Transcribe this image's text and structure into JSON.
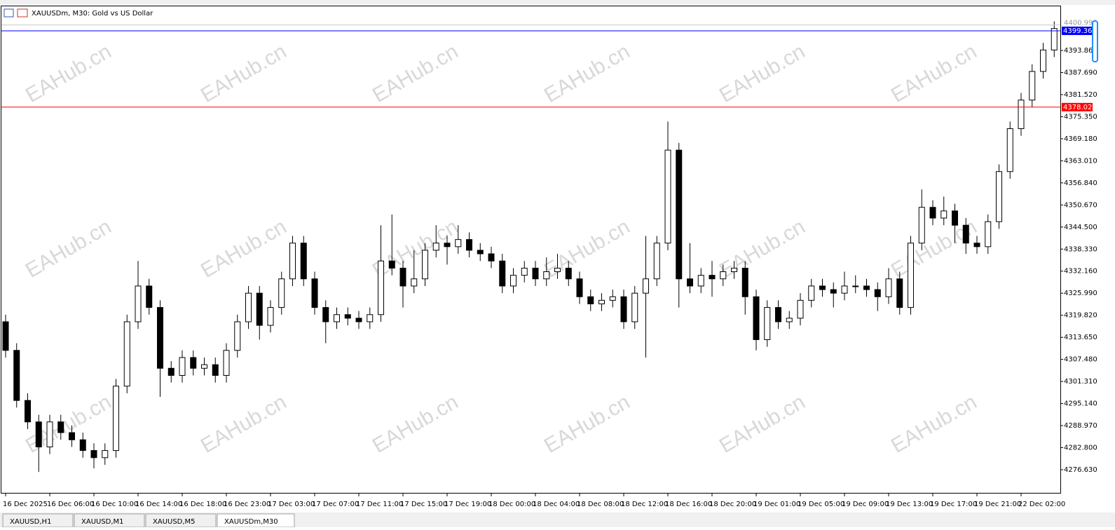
{
  "chart_data": {
    "type": "candlestick",
    "title": "XAUUSDm, M30:  Gold vs US Dollar",
    "watermark": "EAHub.cn",
    "tabs": [
      "XAUUSD,H1",
      "XAUUSD,M1",
      "XAUUSD,M5",
      "XAUUSDm,M30"
    ],
    "open": [
      4318,
      4310,
      4296,
      4290,
      4283,
      4290,
      4287,
      4285,
      4282,
      4280,
      4282,
      4300,
      4318,
      4328,
      4322,
      4305,
      4303,
      4308,
      4305,
      4306,
      4303,
      4310,
      4318,
      4326,
      4317,
      4322,
      4330,
      4340,
      4330,
      4322,
      4318,
      4320,
      4319,
      4318,
      4320,
      4335,
      4333,
      4328,
      4330,
      4338,
      4340,
      4339,
      4341,
      4338,
      4337,
      4335,
      4328,
      4331,
      4333,
      4330,
      4332,
      4333,
      4330,
      4325,
      4323,
      4324,
      4325,
      4318,
      4326,
      4330,
      4340,
      4366,
      4330,
      4328,
      4331,
      4330,
      4332,
      4333,
      4325,
      4313,
      4322,
      4318,
      4319,
      4324,
      4328,
      4327,
      4326,
      4328,
      4328,
      4327,
      4325,
      4330,
      4322,
      4340,
      4350,
      4347,
      4349,
      4345,
      4340,
      4339,
      4346,
      4360,
      4372,
      4380,
      4388,
      4394
    ],
    "high": [
      4320,
      4312,
      4298,
      4292,
      4292,
      4292,
      4289,
      4287,
      4284,
      4284,
      4302,
      4320,
      4335,
      4330,
      4324,
      4307,
      4310,
      4310,
      4308,
      4308,
      4312,
      4320,
      4328,
      4328,
      4324,
      4332,
      4342,
      4342,
      4332,
      4324,
      4322,
      4322,
      4321,
      4322,
      4345,
      4348,
      4335,
      4338,
      4340,
      4345,
      4342,
      4345,
      4343,
      4340,
      4339,
      4337,
      4333,
      4335,
      4335,
      4336,
      4337,
      4335,
      4332,
      4327,
      4326,
      4327,
      4327,
      4328,
      4342,
      4342,
      4374,
      4368,
      4340,
      4333,
      4335,
      4334,
      4335,
      4335,
      4327,
      4324,
      4324,
      4321,
      4326,
      4330,
      4330,
      4329,
      4332,
      4331,
      4330,
      4329,
      4333,
      4332,
      4342,
      4355,
      4352,
      4353,
      4351,
      4347,
      4342,
      4348,
      4362,
      4374,
      4382,
      4390,
      4396,
      4402
    ],
    "low": [
      4308,
      4294,
      4288,
      4276,
      4281,
      4285,
      4283,
      4280,
      4277,
      4278,
      4280,
      4298,
      4316,
      4320,
      4297,
      4301,
      4301,
      4303,
      4303,
      4301,
      4301,
      4308,
      4316,
      4313,
      4315,
      4320,
      4328,
      4328,
      4320,
      4312,
      4316,
      4317,
      4316,
      4316,
      4318,
      4331,
      4322,
      4326,
      4328,
      4336,
      4334,
      4337,
      4336,
      4335,
      4333,
      4326,
      4326,
      4329,
      4328,
      4328,
      4330,
      4328,
      4323,
      4321,
      4321,
      4322,
      4316,
      4316,
      4308,
      4328,
      4338,
      4322,
      4326,
      4326,
      4325,
      4328,
      4330,
      4320,
      4310,
      4311,
      4316,
      4316,
      4317,
      4322,
      4325,
      4322,
      4324,
      4326,
      4325,
      4321,
      4323,
      4320,
      4320,
      4338,
      4345,
      4345,
      4340,
      4337,
      4337,
      4337,
      4344,
      4358,
      4370,
      4378,
      4386,
      4392
    ],
    "close": [
      4310,
      4296,
      4290,
      4283,
      4290,
      4287,
      4285,
      4282,
      4280,
      4282,
      4300,
      4318,
      4328,
      4322,
      4305,
      4303,
      4308,
      4305,
      4306,
      4303,
      4310,
      4318,
      4326,
      4317,
      4322,
      4330,
      4340,
      4330,
      4322,
      4318,
      4320,
      4319,
      4318,
      4320,
      4335,
      4333,
      4328,
      4330,
      4338,
      4340,
      4339,
      4341,
      4338,
      4337,
      4335,
      4328,
      4331,
      4333,
      4330,
      4332,
      4333,
      4330,
      4325,
      4323,
      4324,
      4325,
      4318,
      4326,
      4330,
      4340,
      4366,
      4330,
      4328,
      4331,
      4330,
      4332,
      4333,
      4325,
      4313,
      4322,
      4318,
      4319,
      4324,
      4328,
      4327,
      4326,
      4328,
      4328,
      4327,
      4325,
      4330,
      4322,
      4340,
      4350,
      4347,
      4349,
      4345,
      4340,
      4339,
      4346,
      4360,
      4372,
      4380,
      4388,
      4394,
      4400
    ],
    "up_color": "#ffffff",
    "down_color": "#000000",
    "ylim": [
      4270.16,
      4406.41
    ],
    "yticks": [
      {
        "value": 4276.63,
        "label": "4276.630"
      },
      {
        "value": 4282.8,
        "label": "4282.800"
      },
      {
        "value": 4288.97,
        "label": "4288.970"
      },
      {
        "value": 4295.14,
        "label": "4295.140"
      },
      {
        "value": 4301.31,
        "label": "4301.310"
      },
      {
        "value": 4307.48,
        "label": "4307.480"
      },
      {
        "value": 4313.65,
        "label": "4313.650"
      },
      {
        "value": 4319.82,
        "label": "4319.820"
      },
      {
        "value": 4325.99,
        "label": "4325.990"
      },
      {
        "value": 4332.16,
        "label": "4332.160"
      },
      {
        "value": 4338.33,
        "label": "4338.330"
      },
      {
        "value": 4344.5,
        "label": "4344.500"
      },
      {
        "value": 4350.67,
        "label": "4350.670"
      },
      {
        "value": 4356.84,
        "label": "4356.840"
      },
      {
        "value": 4363.01,
        "label": "4363.010"
      },
      {
        "value": 4369.18,
        "label": "4369.180"
      },
      {
        "value": 4375.35,
        "label": "4375.350"
      },
      {
        "value": 4381.52,
        "label": "4381.520"
      },
      {
        "value": 4387.69,
        "label": "4387.690"
      },
      {
        "value": 4393.86,
        "label": "4393.860"
      }
    ],
    "xticks": [
      {
        "value": 0,
        "label": "16 Dec 2025"
      },
      {
        "value": 4,
        "label": "16 Dec 06:00"
      },
      {
        "value": 8,
        "label": "16 Dec 10:00"
      },
      {
        "value": 12,
        "label": "16 Dec 14:00"
      },
      {
        "value": 16,
        "label": "16 Dec 18:00"
      },
      {
        "value": 20,
        "label": "16 Dec 23:00"
      },
      {
        "value": 24,
        "label": "17 Dec 03:00"
      },
      {
        "value": 28,
        "label": "17 Dec 07:00"
      },
      {
        "value": 32,
        "label": "17 Dec 11:00"
      },
      {
        "value": 36,
        "label": "17 Dec 15:00"
      },
      {
        "value": 40,
        "label": "17 Dec 19:00"
      },
      {
        "value": 44,
        "label": "18 Dec 00:00"
      },
      {
        "value": 48,
        "label": "18 Dec 04:00"
      },
      {
        "value": 52,
        "label": "18 Dec 08:00"
      },
      {
        "value": 56,
        "label": "18 Dec 12:00"
      },
      {
        "value": 60,
        "label": "18 Dec 16:00"
      },
      {
        "value": 64,
        "label": "18 Dec 20:00"
      },
      {
        "value": 68,
        "label": "19 Dec 01:00"
      },
      {
        "value": 72,
        "label": "19 Dec 05:00"
      },
      {
        "value": 76,
        "label": "19 Dec 09:00"
      },
      {
        "value": 80,
        "label": "19 Dec 13:00"
      },
      {
        "value": 84,
        "label": "19 Dec 17:00"
      },
      {
        "value": 88,
        "label": "19 Dec 21:00"
      },
      {
        "value": 92,
        "label": "22 Dec 02:00"
      }
    ],
    "hlines": [
      {
        "value": 4399.36,
        "label": "4399.360",
        "color": "#0000ff"
      },
      {
        "value": 4378.023,
        "label": "4378.023",
        "color": "#ff0000"
      }
    ],
    "ask_label": {
      "value": 4400.992,
      "label": "4400.992"
    }
  }
}
